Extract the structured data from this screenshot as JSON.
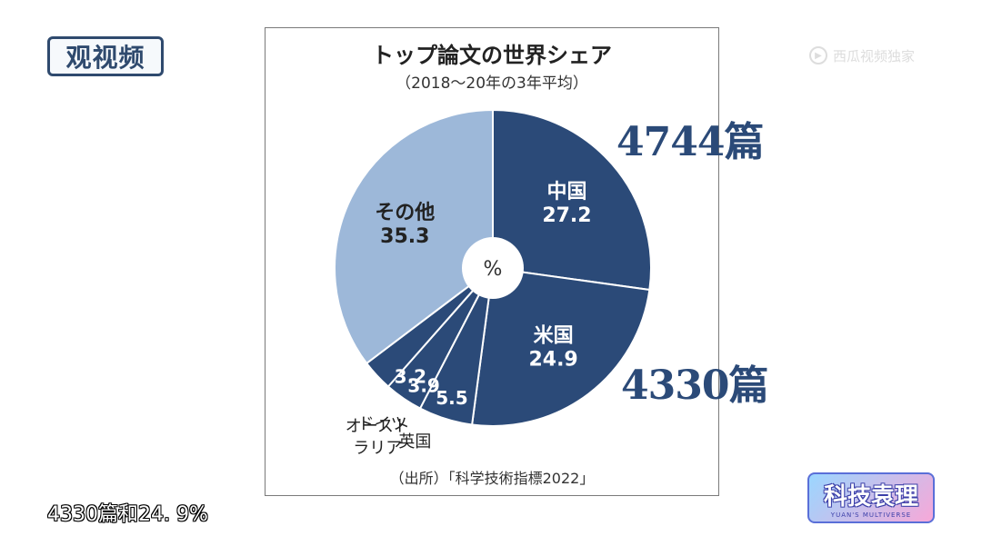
{
  "watermarks": {
    "top_left_logo": "观视频",
    "top_right_logo": "西瓜视频独家",
    "bottom_right_logo_main": "科技袁理",
    "bottom_right_logo_sub": "YUAN'S MULTIVERSE"
  },
  "chart_data": {
    "type": "pie",
    "title": "トップ論文の世界シェア",
    "subtitle": "（2018～20年の3年平均）",
    "unit_label": "%",
    "source": "（出所）「科学技術指標2022」",
    "slices": [
      {
        "name": "中国",
        "value": 27.2,
        "color": "#2b4a78"
      },
      {
        "name": "米国",
        "value": 24.9,
        "color": "#2b4a78"
      },
      {
        "name": "英国",
        "value": 5.5,
        "color": "#2b4a78"
      },
      {
        "name": "ドイツ",
        "value": 3.9,
        "color": "#2b4a78"
      },
      {
        "name": "オースト\nラリア",
        "value": 3.2,
        "color": "#2b4a78"
      },
      {
        "name": "その他",
        "value": 35.3,
        "color": "#9db8d9"
      }
    ]
  },
  "annotations": {
    "china_count": "4744篇",
    "usa_count": "4330篇"
  },
  "caption": "4330篇和24. 9%"
}
